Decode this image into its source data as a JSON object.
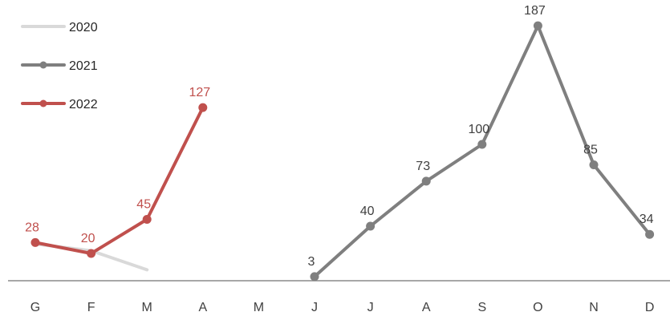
{
  "chart_data": {
    "type": "line",
    "categories": [
      "G",
      "F",
      "M",
      "A",
      "M",
      "J",
      "J",
      "A",
      "S",
      "O",
      "N",
      "D"
    ],
    "ylim": [
      0,
      200
    ],
    "grid": false,
    "legend_position": "top-left",
    "series": [
      {
        "name": "2020",
        "color": "#d9d9d9",
        "markers": false,
        "show_labels": false,
        "values": [
          27,
          22,
          8,
          null,
          null,
          null,
          null,
          null,
          null,
          null,
          null,
          null
        ]
      },
      {
        "name": "2021",
        "color": "#7f7f7f",
        "markers": true,
        "show_labels": true,
        "label_color": "#404040",
        "values": [
          null,
          null,
          null,
          null,
          null,
          3,
          40,
          73,
          100,
          187,
          85,
          34
        ]
      },
      {
        "name": "2022",
        "color": "#c0504d",
        "markers": true,
        "show_labels": true,
        "label_color": "#c0504d",
        "values": [
          28,
          20,
          45,
          127,
          null,
          null,
          null,
          null,
          null,
          null,
          null,
          null
        ]
      }
    ]
  }
}
